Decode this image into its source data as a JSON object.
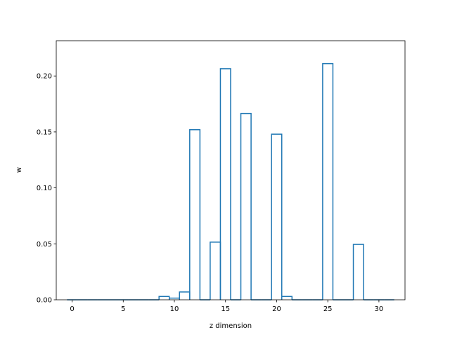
{
  "chart_data": {
    "type": "step-histogram",
    "xlabel": "z dimension",
    "ylabel": "w",
    "xlim": [
      -1.55,
      32.55
    ],
    "ylim": [
      0,
      0.2315
    ],
    "x_ticks": [
      0,
      5,
      10,
      15,
      20,
      25,
      30
    ],
    "x_tick_labels": [
      "0",
      "5",
      "10",
      "15",
      "20",
      "25",
      "30"
    ],
    "y_ticks": [
      0.0,
      0.05,
      0.1,
      0.15,
      0.2
    ],
    "y_tick_labels": [
      "0.00",
      "0.05",
      "0.10",
      "0.15",
      "0.20"
    ],
    "bin_width": 1,
    "bin_start": -0.5,
    "bins_shown": [
      0,
      31
    ],
    "values": [
      0,
      0,
      0,
      0,
      0,
      0,
      0,
      0,
      0,
      0.003,
      0.0015,
      0.007,
      0.152,
      0,
      0.0515,
      0.2065,
      0,
      0.1665,
      0,
      0,
      0.148,
      0.003,
      0,
      0,
      0,
      0.211,
      0,
      0,
      0.0495,
      0,
      0,
      0
    ],
    "line_color": "#1f77b4",
    "grid": false,
    "legend": "none"
  }
}
